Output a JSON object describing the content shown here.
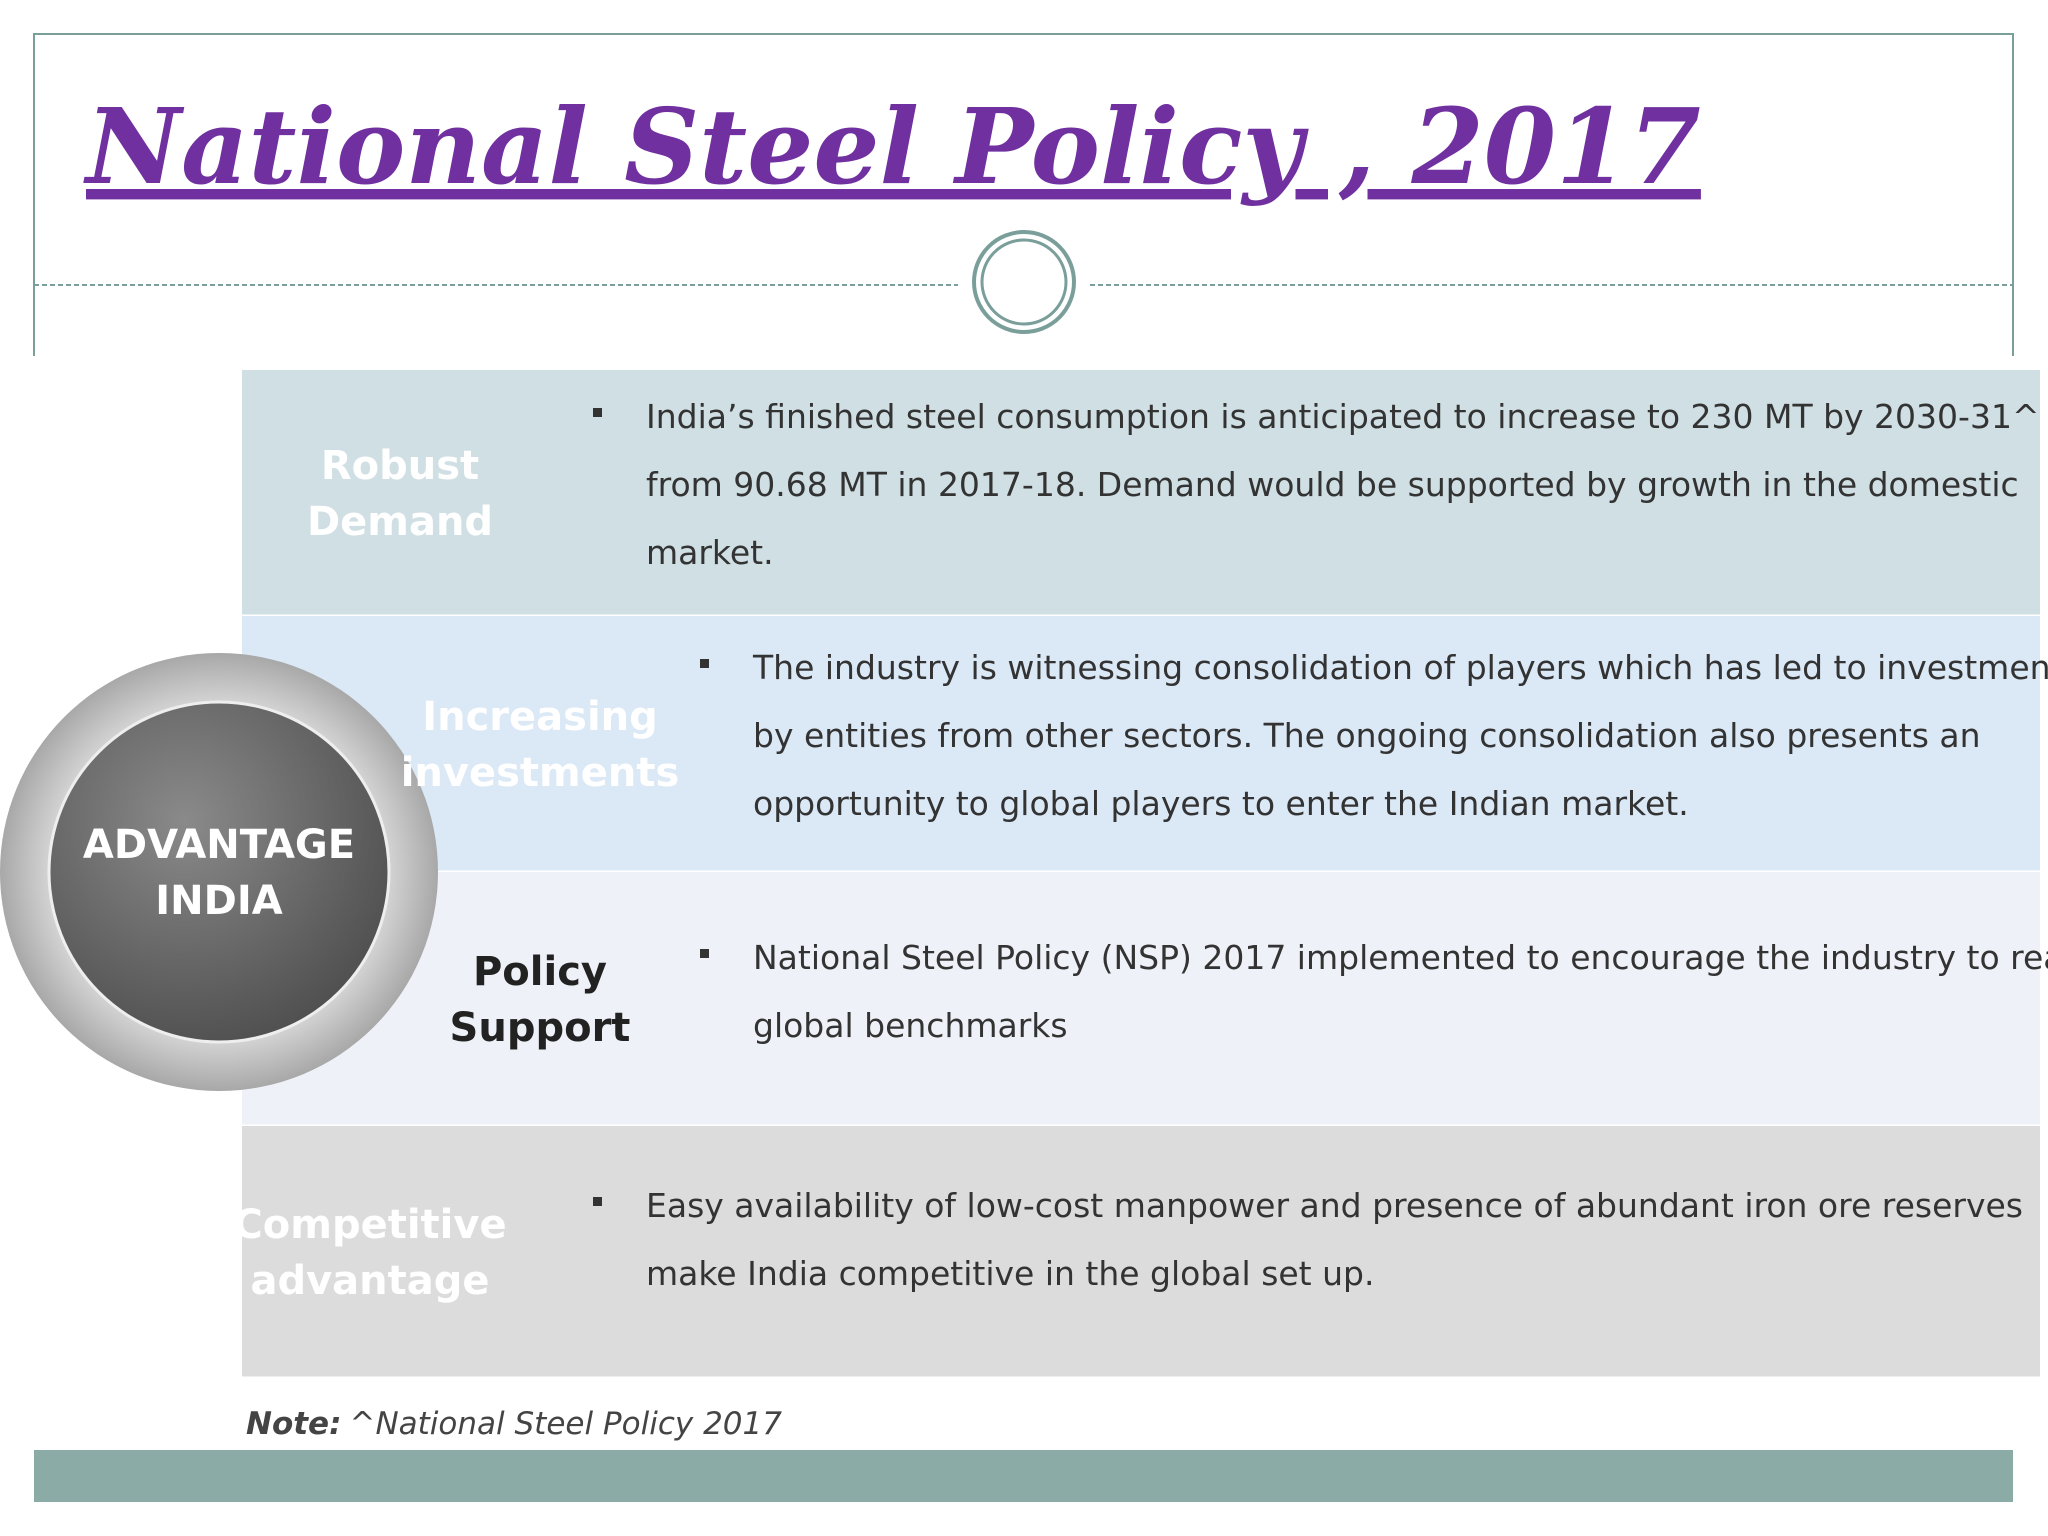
{
  "header": {
    "title": "National  Steel  Policy  ,  2017"
  },
  "center": {
    "lines": [
      "ADVANTAGE",
      "INDIA"
    ]
  },
  "rows": [
    {
      "label": [
        "Robust",
        "Demand"
      ],
      "text": [
        "India’s finished steel consumption is anticipated to increase to 230 MT by 2030-31^",
        "from 90.68 MT in 2017-18. Demand would be supported by growth in the domestic",
        "market."
      ]
    },
    {
      "label": [
        "Increasing",
        "investments"
      ],
      "text": [
        "The industry is witnessing consolidation of players which has led to investments",
        "by entities from other sectors. The ongoing consolidation also presents an",
        "opportunity to global players to enter the Indian market."
      ]
    },
    {
      "label": [
        "Policy",
        "Support"
      ],
      "text": [
        "National Steel Policy (NSP) 2017 implemented to encourage the industry to reach",
        "global benchmarks"
      ]
    },
    {
      "label": [
        "Competitive",
        "advantage"
      ],
      "text": [
        "Easy availability of low-cost manpower and presence of abundant iron ore reserves",
        "make India competitive in the global set up."
      ]
    }
  ],
  "note": {
    "label": "Note:",
    "text": "^National Steel Policy 2017"
  }
}
